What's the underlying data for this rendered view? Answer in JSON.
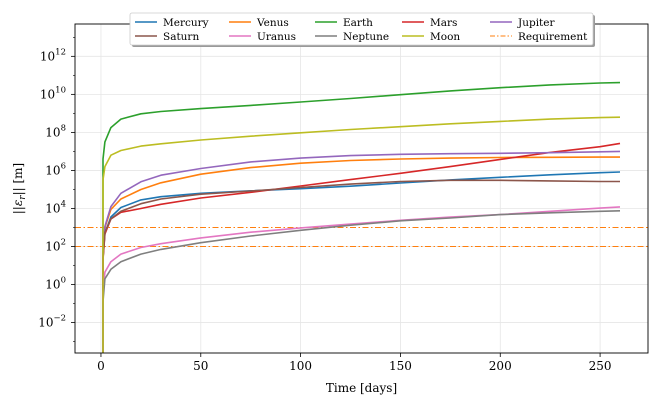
{
  "chart_data": {
    "type": "line",
    "title": "",
    "xlabel": "Time [days]",
    "ylabel": "||ε_r|| [m]",
    "ylabel_parts": {
      "prefix": "||",
      "symbol": "ε",
      "subscript": "r",
      "suffix": "|| [m]"
    },
    "xscale": "linear",
    "yscale": "log",
    "xlim": [
      -13,
      274
    ],
    "ylim_log10": [
      -3.6,
      13.7
    ],
    "xticks": [
      0,
      50,
      100,
      150,
      200,
      250
    ],
    "xtick_labels": [
      "0",
      "50",
      "100",
      "150",
      "200",
      "250"
    ],
    "yticks_log10": [
      -2,
      0,
      2,
      4,
      6,
      8,
      10,
      12
    ],
    "ytick_labels": [
      {
        "base": "10",
        "exp": "−2"
      },
      {
        "base": "10",
        "exp": "0"
      },
      {
        "base": "10",
        "exp": "2"
      },
      {
        "base": "10",
        "exp": "4"
      },
      {
        "base": "10",
        "exp": "6"
      },
      {
        "base": "10",
        "exp": "8"
      },
      {
        "base": "10",
        "exp": "10"
      },
      {
        "base": "10",
        "exp": "12"
      }
    ],
    "grid": true,
    "legend_placement": "top-center",
    "legend_columns": 5,
    "x": [
      1,
      2,
      5,
      10,
      20,
      30,
      50,
      75,
      100,
      125,
      150,
      175,
      200,
      225,
      250,
      260
    ],
    "series": [
      {
        "name": "Mercury",
        "color": "#1f77b4",
        "log10_values": [
          1.4,
          2.7,
          3.55,
          4.05,
          4.45,
          4.62,
          4.8,
          4.93,
          5.04,
          5.17,
          5.34,
          5.5,
          5.64,
          5.77,
          5.88,
          5.92
        ]
      },
      {
        "name": "Venus",
        "color": "#ff7f0e",
        "log10_values": [
          1.6,
          3.0,
          3.95,
          4.5,
          5.0,
          5.35,
          5.8,
          6.15,
          6.38,
          6.52,
          6.6,
          6.65,
          6.68,
          6.69,
          6.7,
          6.7
        ]
      },
      {
        "name": "Earth",
        "color": "#2ca02c",
        "log10_values": [
          6.6,
          7.5,
          8.25,
          8.7,
          8.98,
          9.1,
          9.25,
          9.42,
          9.6,
          9.78,
          9.98,
          10.18,
          10.35,
          10.5,
          10.6,
          10.62
        ]
      },
      {
        "name": "Mars",
        "color": "#d62728",
        "log10_values": [
          1.3,
          2.65,
          3.45,
          3.8,
          4.0,
          4.22,
          4.55,
          4.85,
          5.18,
          5.52,
          5.85,
          6.2,
          6.58,
          6.95,
          7.25,
          7.42
        ]
      },
      {
        "name": "Jupiter",
        "color": "#9467bd",
        "log10_values": [
          1.6,
          3.05,
          4.1,
          4.8,
          5.4,
          5.75,
          6.1,
          6.45,
          6.65,
          6.78,
          6.85,
          6.88,
          6.9,
          6.93,
          6.98,
          7.0
        ]
      },
      {
        "name": "Saturn",
        "color": "#8c564b",
        "log10_values": [
          1.4,
          2.75,
          3.45,
          3.85,
          4.25,
          4.5,
          4.75,
          4.92,
          5.1,
          5.28,
          5.42,
          5.48,
          5.48,
          5.45,
          5.42,
          5.42
        ]
      },
      {
        "name": "Uranus",
        "color": "#e377c2",
        "log10_values": [
          -0.4,
          0.65,
          1.2,
          1.6,
          1.95,
          2.15,
          2.45,
          2.75,
          2.98,
          3.18,
          3.38,
          3.55,
          3.68,
          3.85,
          4.02,
          4.08
        ]
      },
      {
        "name": "Neptune",
        "color": "#7f7f7f",
        "log10_values": [
          -0.9,
          0.3,
          0.8,
          1.2,
          1.6,
          1.85,
          2.2,
          2.55,
          2.85,
          3.12,
          3.35,
          3.5,
          3.68,
          3.77,
          3.85,
          3.88
        ]
      },
      {
        "name": "Moon",
        "color": "#bcbd22",
        "log10_values": [
          5.5,
          6.2,
          6.8,
          7.05,
          7.28,
          7.4,
          7.6,
          7.8,
          7.98,
          8.15,
          8.3,
          8.45,
          8.58,
          8.7,
          8.78,
          8.8
        ]
      }
    ],
    "reference_lines": [
      {
        "name": "Requirement",
        "color": "#ff7f0e",
        "style": "dashdot",
        "log10_values": [
          2,
          3
        ]
      }
    ]
  }
}
